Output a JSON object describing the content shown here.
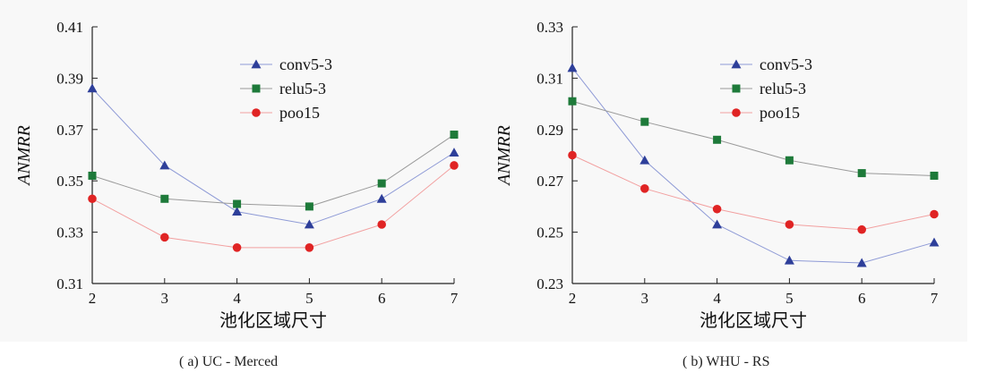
{
  "chart_data": [
    {
      "type": "line",
      "caption": "( a) UC - Merced",
      "xlabel": "池化区域尺寸",
      "ylabel": "ANMRR",
      "x": [
        2,
        3,
        4,
        5,
        6,
        7
      ],
      "x_ticks": [
        "2",
        "3",
        "4",
        "5",
        "6",
        "7"
      ],
      "ylim": [
        0.31,
        0.41
      ],
      "y_ticks": [
        "0.31",
        "0.33",
        "0.35",
        "0.37",
        "0.39",
        "0.41"
      ],
      "legend_position": "top-right",
      "series": [
        {
          "name": "conv5-3",
          "marker": "triangle",
          "color": "#2e3f9a",
          "line_color": "#8e9ad6",
          "values": [
            0.386,
            0.356,
            0.338,
            0.333,
            0.343,
            0.361
          ]
        },
        {
          "name": "relu5-3",
          "marker": "square",
          "color": "#1e7a3a",
          "line_color": "#9a9a9a",
          "values": [
            0.352,
            0.343,
            0.341,
            0.34,
            0.349,
            0.368
          ]
        },
        {
          "name": "poo15",
          "marker": "circle",
          "color": "#e02424",
          "line_color": "#f2a0a0",
          "values": [
            0.343,
            0.328,
            0.324,
            0.324,
            0.333,
            0.356
          ]
        }
      ]
    },
    {
      "type": "line",
      "caption": "( b) WHU - RS",
      "xlabel": "池化区域尺寸",
      "ylabel": "ANMRR",
      "x": [
        2,
        3,
        4,
        5,
        6,
        7
      ],
      "x_ticks": [
        "2",
        "3",
        "4",
        "5",
        "6",
        "7"
      ],
      "ylim": [
        0.23,
        0.33
      ],
      "y_ticks": [
        "0.23",
        "0.25",
        "0.27",
        "0.29",
        "0.31",
        "0.33"
      ],
      "legend_position": "top-right",
      "series": [
        {
          "name": "conv5-3",
          "marker": "triangle",
          "color": "#2e3f9a",
          "line_color": "#8e9ad6",
          "values": [
            0.314,
            0.278,
            0.253,
            0.239,
            0.238,
            0.246
          ]
        },
        {
          "name": "relu5-3",
          "marker": "square",
          "color": "#1e7a3a",
          "line_color": "#9a9a9a",
          "values": [
            0.301,
            0.293,
            0.286,
            0.278,
            0.273,
            0.272
          ]
        },
        {
          "name": "poo15",
          "marker": "circle",
          "color": "#e02424",
          "line_color": "#f2a0a0",
          "values": [
            0.28,
            0.267,
            0.259,
            0.253,
            0.251,
            0.257
          ]
        }
      ]
    }
  ]
}
